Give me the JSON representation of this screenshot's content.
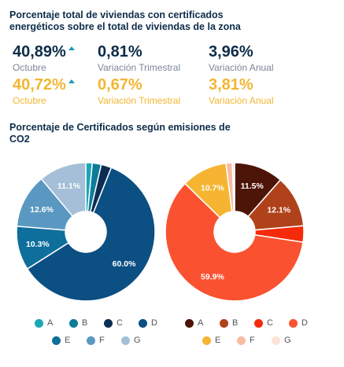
{
  "header": {
    "title": "Porcentaje total de viviendas con certificados energéticos sobre el total de viviendas de la zona"
  },
  "stats": {
    "row_a": [
      {
        "value": "40,89%",
        "label": "Octubre",
        "trend": "up"
      },
      {
        "value": "0,81%",
        "label": "Variación Trimestral"
      },
      {
        "value": "3,96%",
        "label": "Variación Anual"
      }
    ],
    "row_b": [
      {
        "value": "40,72%",
        "label": "Octubre",
        "trend": "up"
      },
      {
        "value": "0,67%",
        "label": "Variación Trimestral"
      },
      {
        "value": "3,81%",
        "label": "Variación Anual"
      }
    ],
    "colors": {
      "row_a": "#0d2c4a",
      "row_b": "#f2b632",
      "trend": "#1d9bb0"
    },
    "trend_icon": "triangle-up-icon"
  },
  "section": {
    "subtitle": "Porcentaje de Certificados según emisiones de CO2"
  },
  "chart_data": [
    {
      "type": "pie",
      "donut": true,
      "categories": [
        "A",
        "B",
        "C",
        "D",
        "E",
        "F",
        "G"
      ],
      "values": [
        1.5,
        2.1,
        2.4,
        60.0,
        10.3,
        12.6,
        11.1
      ],
      "labels": [
        "",
        "",
        "",
        "60.0%",
        "10.3%",
        "12.6%",
        "11.1%"
      ],
      "colors": [
        "#1aa6b7",
        "#0e7c99",
        "#0b2e52",
        "#0b4f83",
        "#0e6e9c",
        "#5a98c2",
        "#a4bfd7"
      ],
      "legend_position": "bottom"
    },
    {
      "type": "pie",
      "donut": true,
      "categories": [
        "A",
        "B",
        "C",
        "D",
        "E",
        "F",
        "G"
      ],
      "values": [
        11.5,
        12.1,
        3.8,
        59.9,
        10.7,
        1.5,
        0.5
      ],
      "labels": [
        "11.5%",
        "12.1%",
        "",
        "59.9%",
        "10.7%",
        "",
        ""
      ],
      "colors": [
        "#4d1508",
        "#b0421b",
        "#f52a0a",
        "#fa5230",
        "#f5b533",
        "#f8bca2",
        "#fbe3d6"
      ],
      "legend_position": "bottom"
    }
  ]
}
